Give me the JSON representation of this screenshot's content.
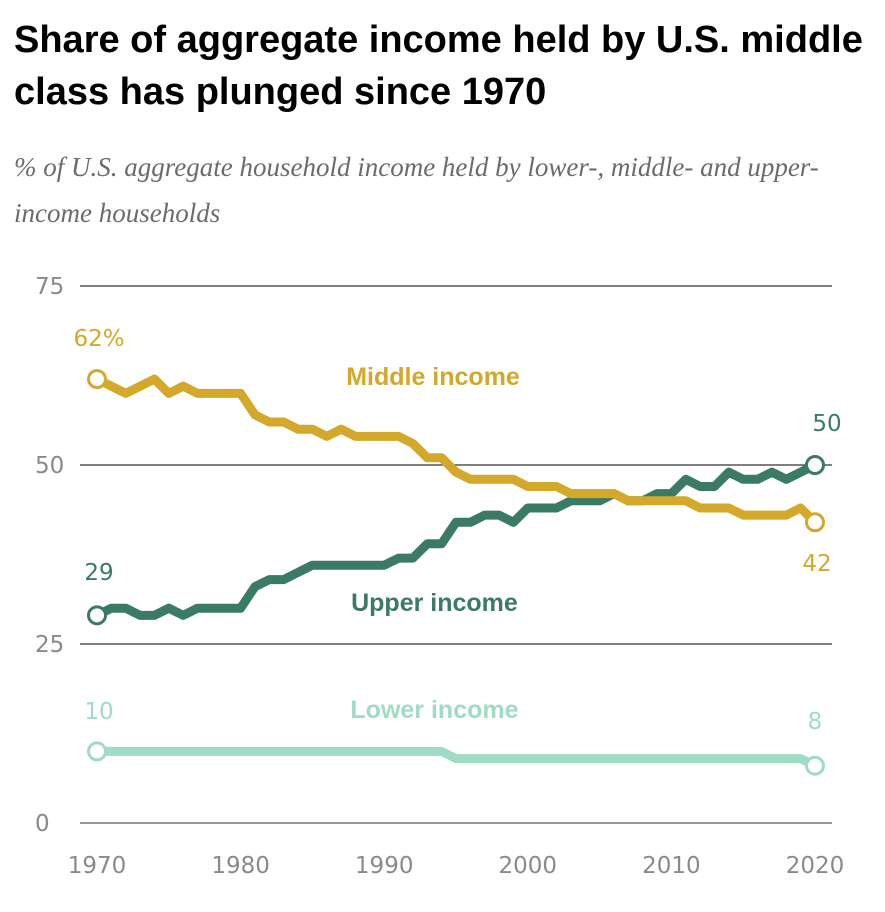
{
  "title": "Share of aggregate income held by U.S. middle class has plunged since 1970",
  "subtitle": "% of U.S. aggregate household income held by lower-, middle- and upper-income households",
  "chart_data": {
    "type": "line",
    "title": "Share of aggregate income held by U.S. middle class has plunged since 1970",
    "subtitle": "% of U.S. aggregate household income held by lower-, middle- and upper-income households",
    "xlabel": "",
    "ylabel": "",
    "xlim": [
      1970,
      2020
    ],
    "ylim": [
      0,
      75
    ],
    "x_ticks": [
      1970,
      1980,
      1990,
      2000,
      2010,
      2020
    ],
    "y_ticks": [
      0,
      25,
      50,
      75
    ],
    "grid": true,
    "x": [
      1970,
      1971,
      1972,
      1973,
      1974,
      1975,
      1976,
      1977,
      1978,
      1979,
      1980,
      1981,
      1982,
      1983,
      1984,
      1985,
      1986,
      1987,
      1988,
      1989,
      1990,
      1991,
      1992,
      1993,
      1994,
      1995,
      1996,
      1997,
      1998,
      1999,
      2000,
      2001,
      2002,
      2003,
      2004,
      2005,
      2006,
      2007,
      2008,
      2009,
      2010,
      2011,
      2012,
      2013,
      2014,
      2015,
      2016,
      2017,
      2018,
      2019,
      2020
    ],
    "series": [
      {
        "name": "Middle income",
        "color": "#d4a82a",
        "start_label": "62%",
        "end_label": "42",
        "values": [
          62,
          61,
          60,
          61,
          62,
          60,
          61,
          60,
          60,
          60,
          60,
          57,
          56,
          56,
          55,
          55,
          54,
          55,
          54,
          54,
          54,
          54,
          53,
          51,
          51,
          49,
          48,
          48,
          48,
          48,
          47,
          47,
          47,
          46,
          46,
          46,
          46,
          45,
          45,
          45,
          45,
          45,
          44,
          44,
          44,
          43,
          43,
          43,
          43,
          44,
          42
        ]
      },
      {
        "name": "Upper income",
        "color": "#3b7a64",
        "start_label": "29",
        "end_label": "50",
        "values": [
          29,
          30,
          30,
          29,
          29,
          30,
          29,
          30,
          30,
          30,
          30,
          33,
          34,
          34,
          35,
          36,
          36,
          36,
          36,
          36,
          36,
          37,
          37,
          39,
          39,
          42,
          42,
          43,
          43,
          42,
          44,
          44,
          44,
          45,
          45,
          45,
          46,
          45,
          45,
          46,
          46,
          48,
          47,
          47,
          49,
          48,
          48,
          49,
          48,
          49,
          50
        ]
      },
      {
        "name": "Lower income",
        "color": "#9fdcc4",
        "start_label": "10",
        "end_label": "8",
        "values": [
          10,
          10,
          10,
          10,
          10,
          10,
          10,
          10,
          10,
          10,
          10,
          10,
          10,
          10,
          10,
          10,
          10,
          10,
          10,
          10,
          10,
          10,
          10,
          10,
          10,
          9,
          9,
          9,
          9,
          9,
          9,
          9,
          9,
          9,
          9,
          9,
          9,
          9,
          9,
          9,
          9,
          9,
          9,
          9,
          9,
          9,
          9,
          9,
          9,
          9,
          8
        ]
      }
    ],
    "annotations": [
      {
        "text": "Middle income",
        "series": "Middle income"
      },
      {
        "text": "Upper income",
        "series": "Upper income"
      },
      {
        "text": "Lower income",
        "series": "Lower income"
      }
    ]
  }
}
